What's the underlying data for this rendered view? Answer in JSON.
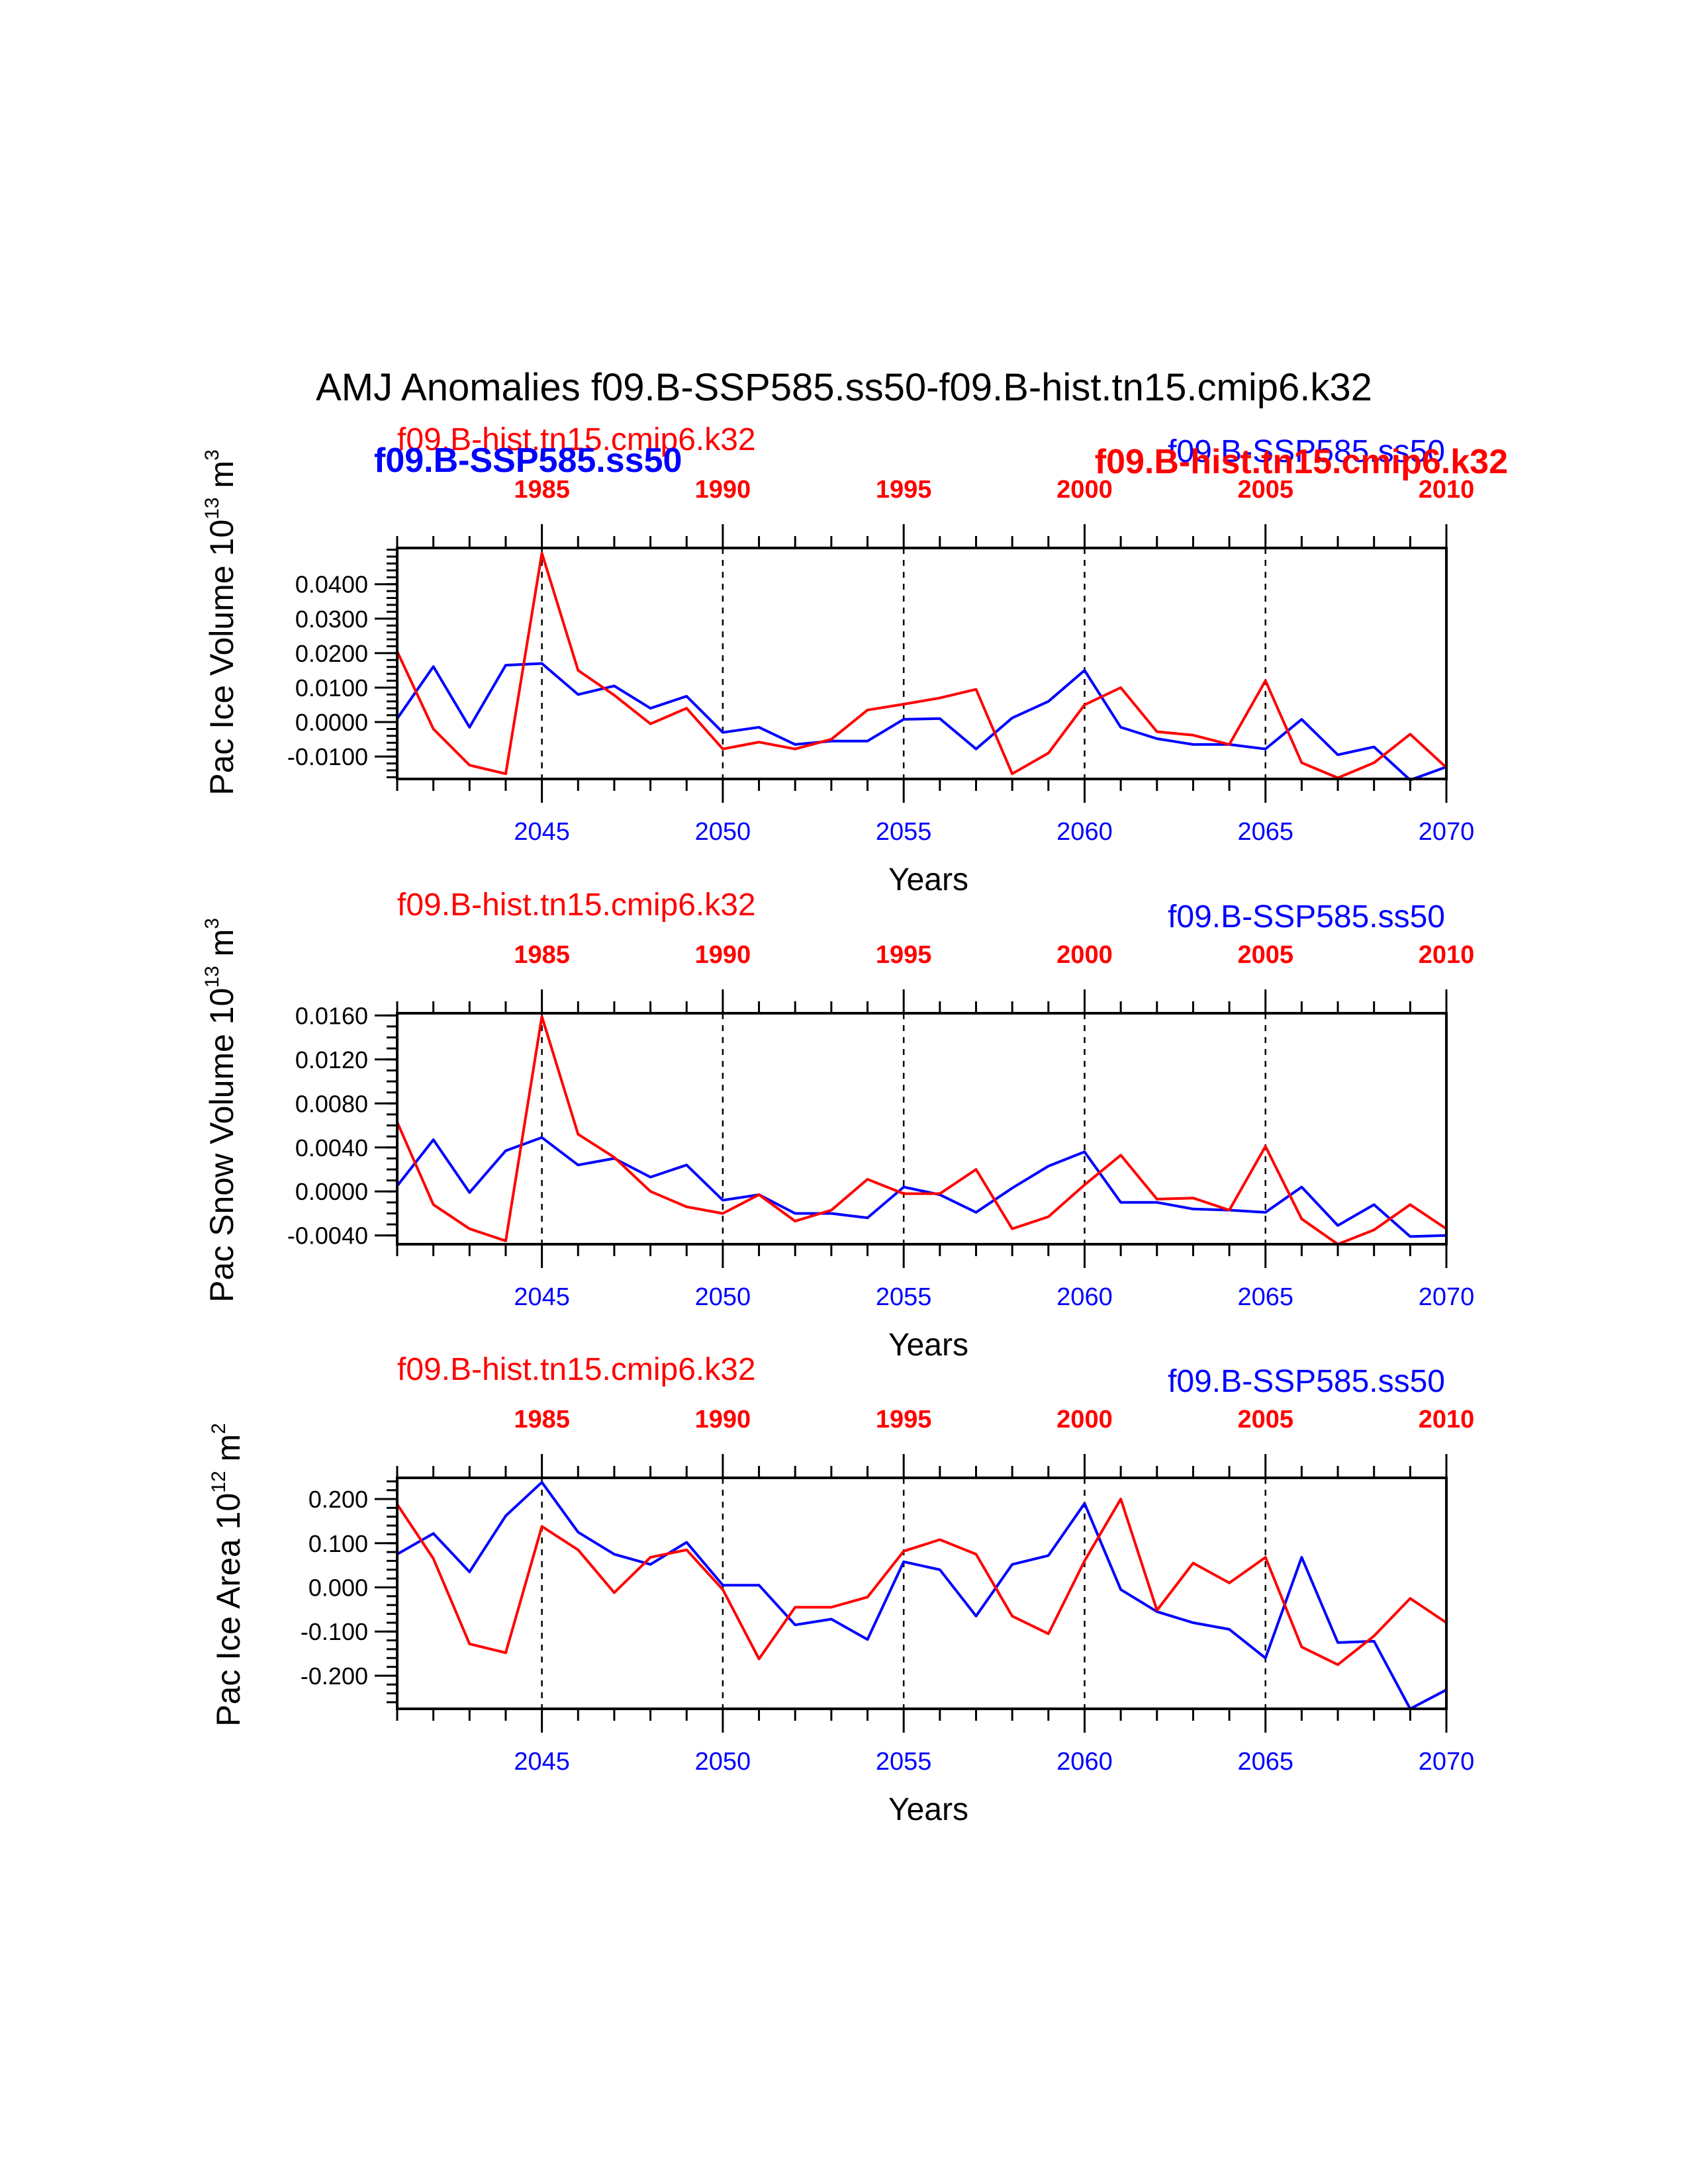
{
  "title": "AMJ Anomalies f09.B-SSP585.ss50-f09.B-hist.tn15.cmip6.k32",
  "colors": {
    "ssp": "#0000ff",
    "hist": "#ff0000",
    "axis": "#000000"
  },
  "chart_data": [
    {
      "type": "line",
      "ylabel": "Pac Ice Volume 10",
      "ylabel_sup": "13",
      "ylabel_unit": " m",
      "ylabel_unit_sup": "3",
      "xlabel": "Years",
      "ylim": [
        -0.0165,
        0.0505
      ],
      "yticks": [
        -0.01,
        0.0,
        0.01,
        0.02,
        0.03,
        0.04
      ],
      "ytick_labels": [
        "-0.0100",
        "0.0000",
        "0.0100",
        "0.0200",
        "0.0300",
        "0.0400"
      ],
      "yminor_step": 0.002,
      "xlim_bottom": [
        2041,
        2070
      ],
      "xlim_top": [
        1981,
        2010
      ],
      "bottom_ticks": [
        "2045",
        "2050",
        "2055",
        "2060",
        "2065",
        "2070"
      ],
      "top_ticks": [
        "1985",
        "1990",
        "1995",
        "2000",
        "2005",
        "2010"
      ],
      "top_labels": {
        "left_red": "f09.B-hist.tn15.cmip6.k32",
        "left_blue_bold": "f09.B-SSP585.ss50",
        "right_blue": "f09.B-SSP585.ss50",
        "right_red_bold": "f09.B-hist.tn15.cmip6.k32"
      },
      "series": [
        {
          "name": "f09.B-SSP585.ss50",
          "x": [
            2041,
            2042,
            2043,
            2044,
            2045,
            2046,
            2047,
            2048,
            2049,
            2050,
            2051,
            2052,
            2053,
            2054,
            2055,
            2056,
            2057,
            2058,
            2059,
            2060,
            2061,
            2062,
            2063,
            2064,
            2065,
            2066,
            2067,
            2068,
            2069,
            2070
          ],
          "values": [
            0.001,
            0.0161,
            -0.0015,
            0.0165,
            0.017,
            0.008,
            0.0105,
            0.004,
            0.0075,
            -0.003,
            -0.0015,
            -0.0065,
            -0.0055,
            -0.0055,
            0.0008,
            0.001,
            -0.0078,
            0.0012,
            0.006,
            0.015,
            -0.0015,
            -0.0048,
            -0.0065,
            -0.0065,
            -0.0078,
            0.0008,
            -0.0095,
            -0.0072,
            -0.0168,
            -0.013
          ]
        },
        {
          "name": "f09.B-hist.tn15.cmip6.k32",
          "x": [
            1981,
            1982,
            1983,
            1984,
            1985,
            1986,
            1987,
            1988,
            1989,
            1990,
            1991,
            1992,
            1993,
            1994,
            1995,
            1996,
            1997,
            1998,
            1999,
            2000,
            2001,
            2002,
            2003,
            2004,
            2005,
            2006,
            2007,
            2008,
            2009,
            2010
          ],
          "values": [
            0.0205,
            -0.002,
            -0.0125,
            -0.015,
            0.049,
            0.015,
            0.0078,
            -0.0005,
            0.004,
            -0.0078,
            -0.0058,
            -0.0078,
            -0.005,
            0.0035,
            0.0052,
            0.007,
            0.0095,
            -0.015,
            -0.009,
            0.005,
            0.01,
            -0.0028,
            -0.0038,
            -0.0065,
            0.012,
            -0.0118,
            -0.0162,
            -0.0118,
            -0.0035,
            -0.0132
          ]
        }
      ]
    },
    {
      "type": "line",
      "ylabel": "Pac Snow Volume 10",
      "ylabel_sup": "13",
      "ylabel_unit": " m",
      "ylabel_unit_sup": "3",
      "xlabel": "Years",
      "ylim": [
        -0.0048,
        0.0162
      ],
      "yticks": [
        -0.004,
        0.0,
        0.004,
        0.008,
        0.012,
        0.016
      ],
      "ytick_labels": [
        "-0.0040",
        "0.0000",
        "0.0040",
        "0.0080",
        "0.0120",
        "0.0160"
      ],
      "yminor_step": 0.001,
      "xlim_bottom": [
        2041,
        2070
      ],
      "xlim_top": [
        1981,
        2010
      ],
      "bottom_ticks": [
        "2045",
        "2050",
        "2055",
        "2060",
        "2065",
        "2070"
      ],
      "top_ticks": [
        "1985",
        "1990",
        "1995",
        "2000",
        "2005",
        "2010"
      ],
      "top_labels": {
        "left_red": "f09.B-hist.tn15.cmip6.k32",
        "right_blue": "f09.B-SSP585.ss50"
      },
      "series": [
        {
          "name": "f09.B-SSP585.ss50",
          "x": [
            2041,
            2042,
            2043,
            2044,
            2045,
            2046,
            2047,
            2048,
            2049,
            2050,
            2051,
            2052,
            2053,
            2054,
            2055,
            2056,
            2057,
            2058,
            2059,
            2060,
            2061,
            2062,
            2063,
            2064,
            2065,
            2066,
            2067,
            2068,
            2069,
            2070
          ],
          "values": [
            0.0005,
            0.0047,
            -0.0001,
            0.0037,
            0.0049,
            0.0024,
            0.003,
            0.0013,
            0.0024,
            -0.0008,
            -0.0003,
            -0.002,
            -0.002,
            -0.0024,
            0.0004,
            -0.0003,
            -0.0019,
            0.0003,
            0.0023,
            0.0036,
            -0.001,
            -0.001,
            -0.0016,
            -0.0017,
            -0.0019,
            0.0004,
            -0.0031,
            -0.0012,
            -0.0041,
            -0.004
          ]
        },
        {
          "name": "f09.B-hist.tn15.cmip6.k32",
          "x": [
            1981,
            1982,
            1983,
            1984,
            1985,
            1986,
            1987,
            1988,
            1989,
            1990,
            1991,
            1992,
            1993,
            1994,
            1995,
            1996,
            1997,
            1998,
            1999,
            2000,
            2001,
            2002,
            2003,
            2004,
            2005,
            2006,
            2007,
            2008,
            2009,
            2010
          ],
          "values": [
            0.0063,
            -0.0012,
            -0.0034,
            -0.0045,
            0.0159,
            0.0052,
            0.0031,
            0.0,
            -0.0014,
            -0.002,
            -0.0003,
            -0.0027,
            -0.0017,
            0.0011,
            -0.0002,
            -0.0002,
            0.002,
            -0.0034,
            -0.0023,
            0.0006,
            0.0033,
            -0.0007,
            -0.0006,
            -0.0017,
            0.0041,
            -0.0025,
            -0.0048,
            -0.0035,
            -0.0012,
            -0.0034
          ]
        }
      ]
    },
    {
      "type": "line",
      "ylabel": "Pac Ice Area 10",
      "ylabel_sup": "12",
      "ylabel_unit": " m",
      "ylabel_unit_sup": "2",
      "xlabel": "Years",
      "ylim": [
        -0.275,
        0.248
      ],
      "yticks": [
        -0.2,
        -0.1,
        0.0,
        0.1,
        0.2
      ],
      "ytick_labels": [
        "-0.200",
        "-0.100",
        "0.000",
        "0.100",
        "0.200"
      ],
      "yminor_step": 0.02,
      "xlim_bottom": [
        2041,
        2070
      ],
      "xlim_top": [
        1981,
        2010
      ],
      "bottom_ticks": [
        "2045",
        "2050",
        "2055",
        "2060",
        "2065",
        "2070"
      ],
      "top_ticks": [
        "1985",
        "1990",
        "1995",
        "2000",
        "2005",
        "2010"
      ],
      "top_labels": {
        "left_red": "f09.B-hist.tn15.cmip6.k32",
        "right_blue": "f09.B-SSP585.ss50"
      },
      "series": [
        {
          "name": "f09.B-SSP585.ss50",
          "x": [
            2041,
            2042,
            2043,
            2044,
            2045,
            2046,
            2047,
            2048,
            2049,
            2050,
            2051,
            2052,
            2053,
            2054,
            2055,
            2056,
            2057,
            2058,
            2059,
            2060,
            2061,
            2062,
            2063,
            2064,
            2065,
            2066,
            2067,
            2068,
            2069,
            2070
          ],
          "values": [
            0.075,
            0.122,
            0.035,
            0.162,
            0.238,
            0.125,
            0.075,
            0.052,
            0.102,
            0.005,
            0.005,
            -0.085,
            -0.072,
            -0.118,
            0.058,
            0.04,
            -0.065,
            0.052,
            0.072,
            0.19,
            -0.005,
            -0.055,
            -0.08,
            -0.095,
            -0.16,
            0.068,
            -0.125,
            -0.122,
            -0.275,
            -0.232
          ]
        },
        {
          "name": "f09.B-hist.tn15.cmip6.k32",
          "x": [
            1981,
            1982,
            1983,
            1984,
            1985,
            1986,
            1987,
            1988,
            1989,
            1990,
            1991,
            1992,
            1993,
            1994,
            1995,
            1996,
            1997,
            1998,
            1999,
            2000,
            2001,
            2002,
            2003,
            2004,
            2005,
            2006,
            2007,
            2008,
            2009,
            2010
          ],
          "values": [
            0.188,
            0.065,
            -0.128,
            -0.148,
            0.138,
            0.085,
            -0.012,
            0.068,
            0.085,
            -0.005,
            -0.162,
            -0.045,
            -0.045,
            -0.022,
            0.082,
            0.108,
            0.075,
            -0.065,
            -0.105,
            0.06,
            0.2,
            -0.052,
            0.055,
            0.01,
            0.068,
            -0.135,
            -0.175,
            -0.11,
            -0.025,
            -0.08
          ]
        }
      ]
    }
  ]
}
